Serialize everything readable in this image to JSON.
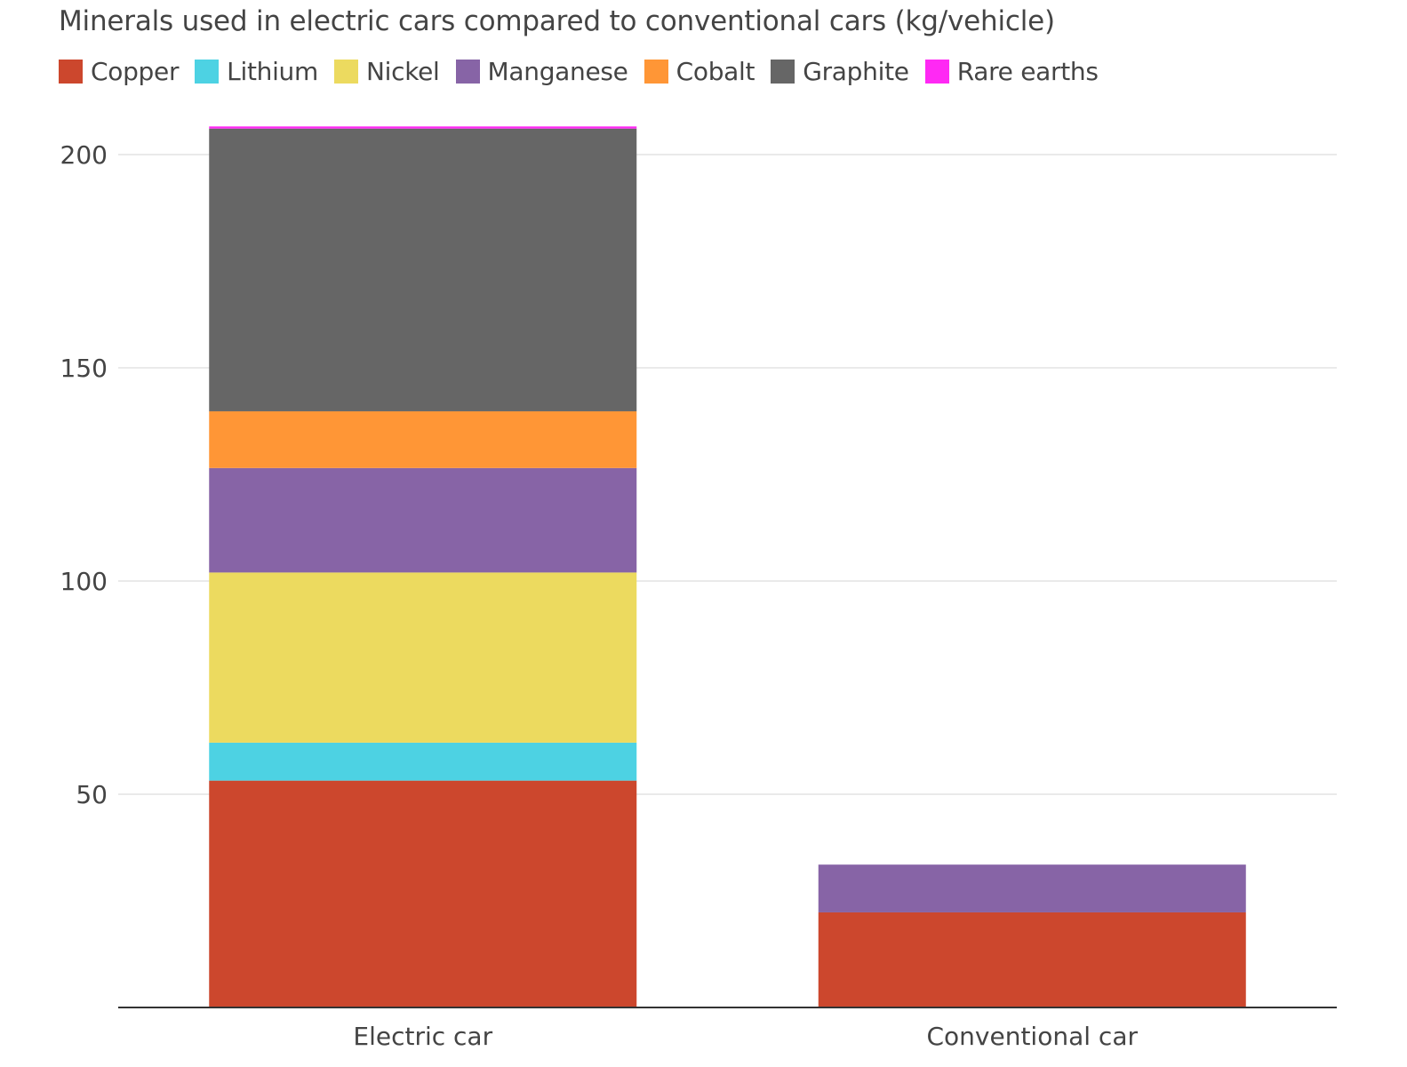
{
  "chart_data": {
    "type": "bar",
    "stacked": true,
    "title": "Minerals used in electric cars compared to conventional cars (kg/vehicle)",
    "xlabel": "",
    "ylabel": "",
    "categories": [
      "Electric car",
      "Conventional car"
    ],
    "ylim": [
      0,
      200
    ],
    "yticks": [
      50,
      100,
      150,
      200
    ],
    "grid": true,
    "legend": "top-left",
    "series": [
      {
        "name": "Copper",
        "color": "#cc472d",
        "values": [
          53.2,
          22.3
        ]
      },
      {
        "name": "Lithium",
        "color": "#4dd2e3",
        "values": [
          8.9,
          0
        ]
      },
      {
        "name": "Nickel",
        "color": "#ecda5f",
        "values": [
          39.9,
          0
        ]
      },
      {
        "name": "Manganese",
        "color": "#8764a6",
        "values": [
          24.5,
          11.2
        ]
      },
      {
        "name": "Cobalt",
        "color": "#ff9636",
        "values": [
          13.3,
          0
        ]
      },
      {
        "name": "Graphite",
        "color": "#666666",
        "values": [
          66.3,
          0
        ]
      },
      {
        "name": "Rare earths",
        "color": "#ff29f4",
        "values": [
          0.5,
          0
        ]
      }
    ]
  }
}
